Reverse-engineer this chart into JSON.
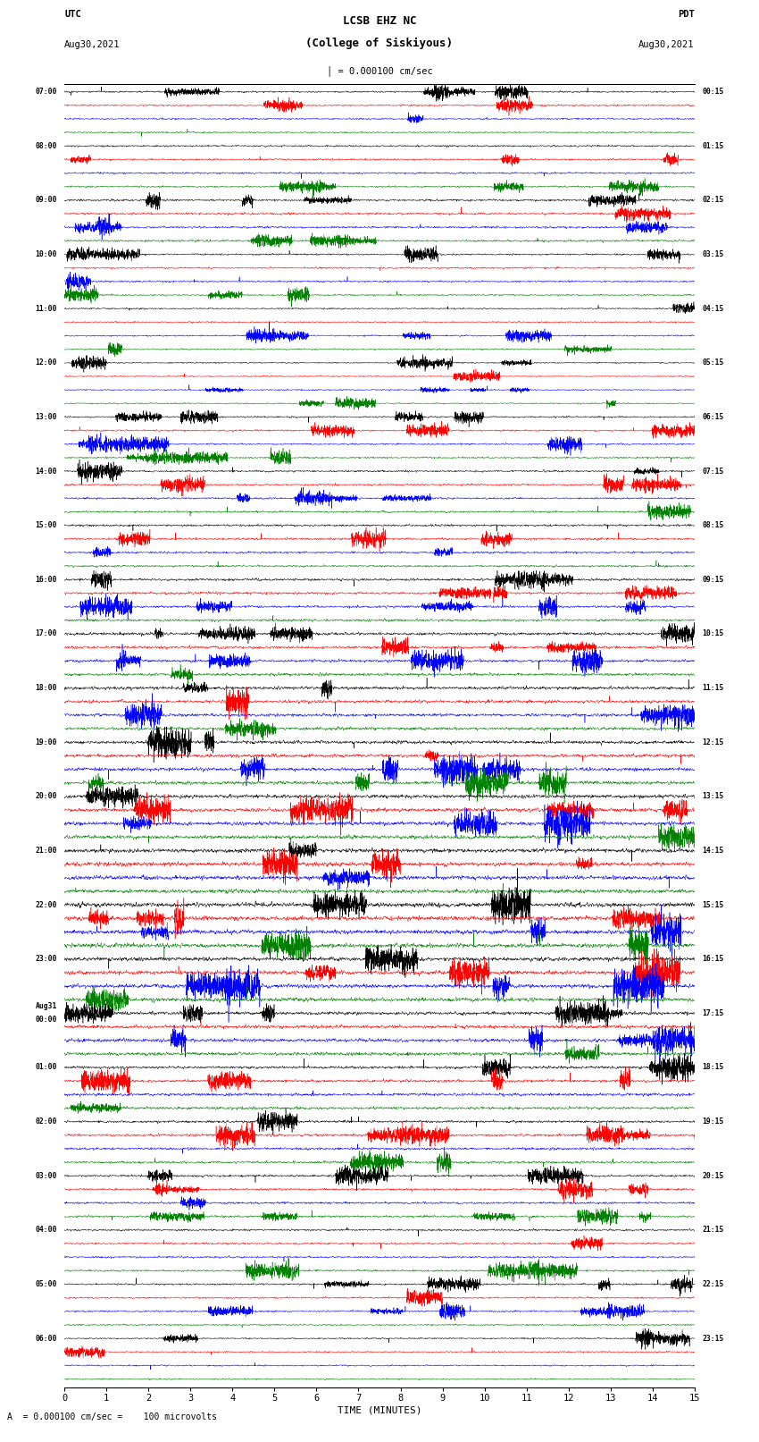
{
  "title_line1": "LCSB EHZ NC",
  "title_line2": "(College of Siskiyous)",
  "scale_text": "= 0.000100 cm/sec",
  "utc_label": "UTC",
  "pdt_label": "PDT",
  "date_left": "Aug30,2021",
  "date_right": "Aug30,2021",
  "xlabel": "TIME (MINUTES)",
  "bottom_note": "A  = 0.000100 cm/sec =    100 microvolts",
  "xlim": [
    0,
    15
  ],
  "xticks": [
    0,
    1,
    2,
    3,
    4,
    5,
    6,
    7,
    8,
    9,
    10,
    11,
    12,
    13,
    14,
    15
  ],
  "figure_width": 8.5,
  "figure_height": 16.13,
  "dpi": 100,
  "bg_color": "#ffffff",
  "trace_colors": [
    "black",
    "red",
    "blue",
    "green"
  ],
  "total_traces": 96,
  "utc_times": [
    "07:00",
    "08:00",
    "09:00",
    "10:00",
    "11:00",
    "12:00",
    "13:00",
    "14:00",
    "15:00",
    "16:00",
    "17:00",
    "18:00",
    "19:00",
    "20:00",
    "21:00",
    "22:00",
    "23:00",
    "Aug31\n00:00",
    "01:00",
    "02:00",
    "03:00",
    "04:00",
    "05:00",
    "06:00"
  ],
  "pdt_times": [
    "00:15",
    "01:15",
    "02:15",
    "03:15",
    "04:15",
    "05:15",
    "06:15",
    "07:15",
    "08:15",
    "09:15",
    "10:15",
    "11:15",
    "12:15",
    "13:15",
    "14:15",
    "15:15",
    "16:15",
    "17:15",
    "18:15",
    "19:15",
    "20:15",
    "21:15",
    "22:15",
    "23:15"
  ]
}
